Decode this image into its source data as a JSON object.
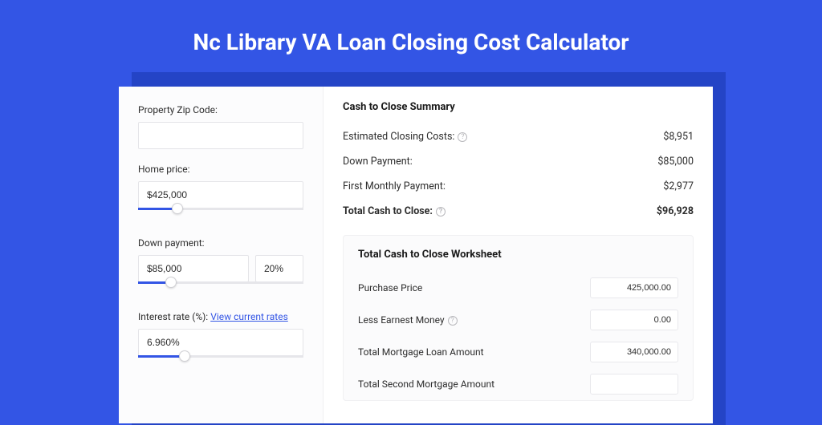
{
  "colors": {
    "page_bg": "#3355e5",
    "shadow_bg": "#2444c6",
    "panel_bg": "#ffffff",
    "sidebar_bg": "#fcfcfd",
    "accent": "#3355e5",
    "text": "#2c2c2c",
    "border": "#e4e4e8"
  },
  "title": "Nc Library VA Loan Closing Cost Calculator",
  "sidebar": {
    "zip": {
      "label": "Property Zip Code:",
      "value": ""
    },
    "home_price": {
      "label": "Home price:",
      "value": "$425,000",
      "slider_percent": 24
    },
    "down_payment": {
      "label": "Down payment:",
      "value": "$85,000",
      "percent": "20%",
      "slider_percent": 20
    },
    "interest_rate": {
      "label_prefix": "Interest rate (%): ",
      "link_text": "View current rates",
      "value": "6.960%",
      "slider_percent": 28
    }
  },
  "summary": {
    "title": "Cash to Close Summary",
    "rows": [
      {
        "label": "Estimated Closing Costs:",
        "help": true,
        "value": "$8,951",
        "bold": false
      },
      {
        "label": "Down Payment:",
        "help": false,
        "value": "$85,000",
        "bold": false
      },
      {
        "label": "First Monthly Payment:",
        "help": false,
        "value": "$2,977",
        "bold": false
      },
      {
        "label": "Total Cash to Close:",
        "help": true,
        "value": "$96,928",
        "bold": true
      }
    ]
  },
  "worksheet": {
    "title": "Total Cash to Close Worksheet",
    "rows": [
      {
        "label": "Purchase Price",
        "help": false,
        "value": "425,000.00"
      },
      {
        "label": "Less Earnest Money",
        "help": true,
        "value": "0.00"
      },
      {
        "label": "Total Mortgage Loan Amount",
        "help": false,
        "value": "340,000.00"
      },
      {
        "label": "Total Second Mortgage Amount",
        "help": false,
        "value": ""
      }
    ]
  }
}
